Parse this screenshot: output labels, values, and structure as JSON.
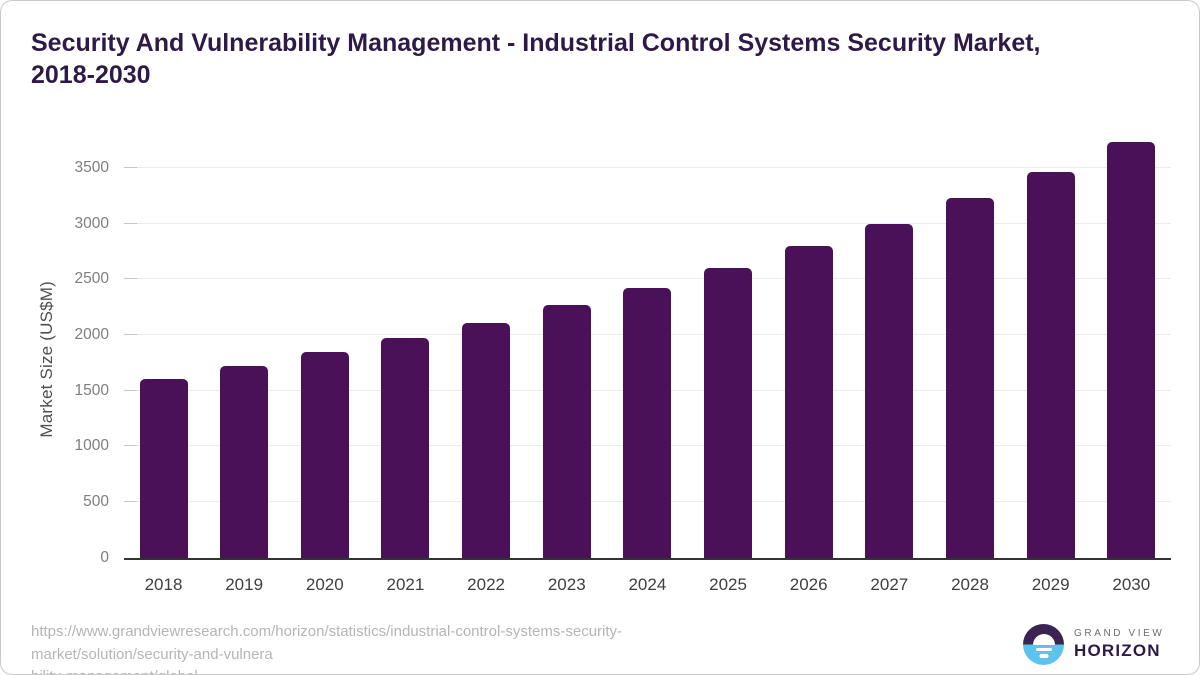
{
  "title": {
    "line1": "Security And Vulnerability Management - Industrial Control Systems Security Market,",
    "line2": "2018-2030"
  },
  "chart_data": {
    "type": "bar",
    "title": "Security And Vulnerability Management - Industrial Control Systems Security Market, 2018-2030",
    "categories": [
      "2018",
      "2019",
      "2020",
      "2021",
      "2022",
      "2023",
      "2024",
      "2025",
      "2026",
      "2027",
      "2028",
      "2029",
      "2030"
    ],
    "values": [
      1605,
      1720,
      1845,
      1970,
      2110,
      2265,
      2425,
      2605,
      2795,
      3000,
      3230,
      3465,
      3730
    ],
    "xlabel": "",
    "ylabel": "Market Size (US$M)",
    "yticks": [
      0,
      500,
      1000,
      1500,
      2000,
      2500,
      3000,
      3500
    ],
    "ylim": [
      0,
      3760
    ],
    "grid": true,
    "legend_position": "none",
    "bar_color": "#4a1158"
  },
  "colors": {
    "title": "#2e1a47",
    "bar": "#4a1158",
    "gridline": "#ececec",
    "axis_line": "#333333",
    "y_tick_label": "#7e7e7e",
    "x_tick_label": "#3f3f3f",
    "source_text": "#b3b5b7",
    "logo_purple": "#3b2352",
    "logo_blue": "#5bc3ee"
  },
  "footer": {
    "url_line1": "https://www.grandviewresearch.com/horizon/statistics/industrial-control-systems-security-market/solution/security-and-vulnera",
    "url_line2": "bility-management/global",
    "logo": {
      "top_text": "GRAND VIEW",
      "bottom_text": "HORIZON"
    }
  }
}
